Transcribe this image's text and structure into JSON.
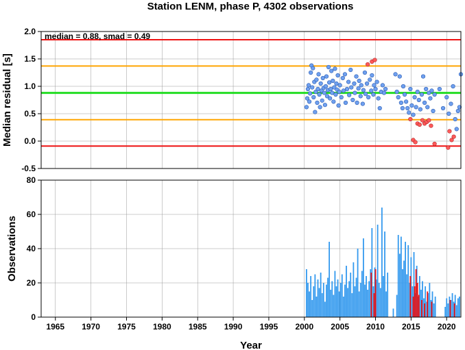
{
  "title": "Station LENM, phase P, 4302 observations",
  "xlabel": "Year",
  "colors": {
    "median_line": "#22dd22",
    "smad_lines": "#ffa500",
    "limit_lines": "#ee1111",
    "point_normal": "#6fa0ef",
    "point_outlier": "#ff5a5a",
    "bar_normal": "#3399ee",
    "bar_outlier": "#ee1111",
    "grid": "#999999"
  },
  "chart_data": [
    {
      "type": "scatter",
      "ylabel": "Median residual [s]",
      "annotation": "median = 0.88, smad = 0.49",
      "xlim": [
        1963,
        2022
      ],
      "ylim": [
        -0.5,
        2.0
      ],
      "x_ticks": [
        1965,
        1970,
        1975,
        1980,
        1985,
        1990,
        1995,
        2000,
        2005,
        2010,
        2015,
        2020
      ],
      "y_ticks": [
        "-0.5",
        "0.0",
        "0.5",
        "1.0",
        "1.5",
        "2.0"
      ],
      "y_tick_values": [
        -0.5,
        0.0,
        0.5,
        1.0,
        1.5,
        2.0
      ],
      "grid": true,
      "hlines": [
        {
          "y": 1.85,
          "kind": "limit"
        },
        {
          "y": 1.37,
          "kind": "smad"
        },
        {
          "y": 0.88,
          "kind": "median"
        },
        {
          "y": 0.39,
          "kind": "smad"
        },
        {
          "y": -0.09,
          "kind": "limit"
        }
      ],
      "points_normal": [
        [
          2000.3,
          0.62
        ],
        [
          2000.4,
          0.78
        ],
        [
          2000.5,
          0.95
        ],
        [
          2000.6,
          1.02
        ],
        [
          2000.7,
          0.72
        ],
        [
          2000.8,
          0.87
        ],
        [
          2000.9,
          1.25
        ],
        [
          2001.0,
          1.38
        ],
        [
          2001.1,
          0.98
        ],
        [
          2001.2,
          1.33
        ],
        [
          2001.3,
          0.8
        ],
        [
          2001.4,
          1.08
        ],
        [
          2001.5,
          0.53
        ],
        [
          2001.6,
          0.9
        ],
        [
          2001.7,
          1.12
        ],
        [
          2001.8,
          0.7
        ],
        [
          2001.9,
          0.95
        ],
        [
          2002.0,
          1.22
        ],
        [
          2002.1,
          0.85
        ],
        [
          2002.2,
          0.62
        ],
        [
          2002.3,
          1.05
        ],
        [
          2002.4,
          0.92
        ],
        [
          2002.5,
          0.74
        ],
        [
          2002.6,
          1.15
        ],
        [
          2002.7,
          0.97
        ],
        [
          2002.8,
          0.88
        ],
        [
          2002.9,
          0.66
        ],
        [
          2003.0,
          1.0
        ],
        [
          2003.1,
          1.18
        ],
        [
          2003.2,
          0.82
        ],
        [
          2003.3,
          0.93
        ],
        [
          2003.4,
          1.35
        ],
        [
          2003.5,
          1.07
        ],
        [
          2003.6,
          0.78
        ],
        [
          2003.7,
          0.95
        ],
        [
          2003.8,
          1.28
        ],
        [
          2003.9,
          0.88
        ],
        [
          2004.0,
          1.1
        ],
        [
          2004.1,
          0.72
        ],
        [
          2004.2,
          0.98
        ],
        [
          2004.3,
          1.32
        ],
        [
          2004.4,
          0.85
        ],
        [
          2004.5,
          1.05
        ],
        [
          2004.6,
          0.94
        ],
        [
          2004.7,
          1.2
        ],
        [
          2004.8,
          0.65
        ],
        [
          2004.9,
          0.9
        ],
        [
          2005.0,
          1.02
        ],
        [
          2005.2,
          0.8
        ],
        [
          2005.4,
          1.15
        ],
        [
          2005.5,
          0.92
        ],
        [
          2005.7,
          1.22
        ],
        [
          2005.8,
          0.7
        ],
        [
          2006.0,
          0.95
        ],
        [
          2006.2,
          1.08
        ],
        [
          2006.3,
          0.84
        ],
        [
          2006.5,
          1.3
        ],
        [
          2006.6,
          0.98
        ],
        [
          2006.8,
          0.75
        ],
        [
          2007.0,
          1.05
        ],
        [
          2007.1,
          0.88
        ],
        [
          2007.3,
          1.18
        ],
        [
          2007.4,
          0.7
        ],
        [
          2007.6,
          0.96
        ],
        [
          2007.7,
          1.1
        ],
        [
          2007.9,
          0.82
        ],
        [
          2008.0,
          1.02
        ],
        [
          2008.2,
          0.68
        ],
        [
          2008.3,
          0.93
        ],
        [
          2008.5,
          1.25
        ],
        [
          2008.6,
          0.86
        ],
        [
          2008.8,
          1.05
        ],
        [
          2009.0,
          0.8
        ],
        [
          2009.2,
          1.12
        ],
        [
          2009.4,
          0.92
        ],
        [
          2009.5,
          1.2
        ],
        [
          2009.7,
          0.85
        ],
        [
          2009.8,
          1.02
        ],
        [
          2010.0,
          0.95
        ],
        [
          2010.2,
          1.08
        ],
        [
          2010.4,
          0.78
        ],
        [
          2010.6,
          0.6
        ],
        [
          2010.8,
          0.9
        ],
        [
          2011.0,
          1.02
        ],
        [
          2011.2,
          0.88
        ],
        [
          2011.4,
          0.95
        ],
        [
          2012.8,
          1.22
        ],
        [
          2013.0,
          0.9
        ],
        [
          2013.2,
          0.8
        ],
        [
          2013.4,
          1.18
        ],
        [
          2013.6,
          0.7
        ],
        [
          2013.8,
          0.6
        ],
        [
          2013.9,
          1.0
        ],
        [
          2014.1,
          0.85
        ],
        [
          2014.3,
          0.72
        ],
        [
          2014.5,
          0.6
        ],
        [
          2014.7,
          0.52
        ],
        [
          2014.9,
          0.95
        ],
        [
          2015.1,
          0.65
        ],
        [
          2015.3,
          0.48
        ],
        [
          2015.5,
          0.8
        ],
        [
          2015.7,
          0.62
        ],
        [
          2015.9,
          0.9
        ],
        [
          2016.1,
          0.75
        ],
        [
          2016.3,
          0.58
        ],
        [
          2016.5,
          0.85
        ],
        [
          2016.7,
          1.18
        ],
        [
          2016.9,
          0.7
        ],
        [
          2017.1,
          0.95
        ],
        [
          2017.3,
          0.62
        ],
        [
          2017.5,
          0.88
        ],
        [
          2017.7,
          0.78
        ],
        [
          2017.9,
          0.92
        ],
        [
          2018.1,
          0.55
        ],
        [
          2018.3,
          0.85
        ],
        [
          2019.0,
          0.95
        ],
        [
          2019.5,
          0.6
        ],
        [
          2020.0,
          0.8
        ],
        [
          2020.3,
          0.5
        ],
        [
          2020.6,
          0.68
        ],
        [
          2020.9,
          1.0
        ],
        [
          2021.2,
          0.4
        ],
        [
          2021.4,
          0.22
        ],
        [
          2021.6,
          0.55
        ],
        [
          2021.8,
          0.62
        ],
        [
          2022.0,
          1.22
        ]
      ],
      "points_outlier": [
        [
          2008.9,
          1.4
        ],
        [
          2009.5,
          1.45
        ],
        [
          2009.9,
          1.48
        ],
        [
          2014.9,
          0.4
        ],
        [
          2015.3,
          0.02
        ],
        [
          2015.6,
          -0.02
        ],
        [
          2015.9,
          0.32
        ],
        [
          2016.2,
          0.3
        ],
        [
          2016.6,
          0.38
        ],
        [
          2016.9,
          0.32
        ],
        [
          2017.2,
          0.35
        ],
        [
          2017.5,
          0.38
        ],
        [
          2017.8,
          0.28
        ],
        [
          2018.3,
          -0.05
        ],
        [
          2020.2,
          -0.12
        ],
        [
          2020.4,
          0.18
        ],
        [
          2020.7,
          0.02
        ],
        [
          2021.0,
          0.08
        ]
      ]
    },
    {
      "type": "bar",
      "ylabel": "Observations",
      "xlim": [
        1963,
        2022
      ],
      "ylim": [
        0,
        80
      ],
      "x_ticks": [
        1965,
        1970,
        1975,
        1980,
        1985,
        1990,
        1995,
        2000,
        2005,
        2010,
        2015,
        2020
      ],
      "y_ticks": [
        "0",
        "20",
        "40",
        "60",
        "80"
      ],
      "y_tick_values": [
        0,
        20,
        40,
        60,
        80
      ],
      "grid": true,
      "bars_normal": [
        [
          2000.3,
          28
        ],
        [
          2000.5,
          20
        ],
        [
          2000.7,
          15
        ],
        [
          2000.9,
          24
        ],
        [
          2001.1,
          10
        ],
        [
          2001.3,
          18
        ],
        [
          2001.5,
          25
        ],
        [
          2001.7,
          12
        ],
        [
          2001.9,
          22
        ],
        [
          2002.1,
          17
        ],
        [
          2002.3,
          26
        ],
        [
          2002.5,
          14
        ],
        [
          2002.7,
          20
        ],
        [
          2002.9,
          9
        ],
        [
          2003.1,
          19
        ],
        [
          2003.3,
          23
        ],
        [
          2003.5,
          44
        ],
        [
          2003.7,
          16
        ],
        [
          2003.9,
          21
        ],
        [
          2004.1,
          13
        ],
        [
          2004.3,
          27
        ],
        [
          2004.5,
          18
        ],
        [
          2004.7,
          22
        ],
        [
          2004.9,
          15
        ],
        [
          2005.1,
          20
        ],
        [
          2005.3,
          25
        ],
        [
          2005.5,
          12
        ],
        [
          2005.7,
          19
        ],
        [
          2005.9,
          30
        ],
        [
          2006.1,
          17
        ],
        [
          2006.3,
          21
        ],
        [
          2006.5,
          26
        ],
        [
          2006.7,
          14
        ],
        [
          2006.9,
          32
        ],
        [
          2007.1,
          18
        ],
        [
          2007.3,
          23
        ],
        [
          2007.5,
          40
        ],
        [
          2007.7,
          15
        ],
        [
          2007.9,
          20
        ],
        [
          2008.1,
          27
        ],
        [
          2008.3,
          46
        ],
        [
          2008.5,
          19
        ],
        [
          2008.7,
          24
        ],
        [
          2008.9,
          16
        ],
        [
          2009.1,
          21
        ],
        [
          2009.3,
          28
        ],
        [
          2009.5,
          52
        ],
        [
          2009.7,
          18
        ],
        [
          2009.9,
          29
        ],
        [
          2010.1,
          22
        ],
        [
          2010.3,
          54
        ],
        [
          2010.5,
          20
        ],
        [
          2010.7,
          17
        ],
        [
          2010.9,
          64
        ],
        [
          2011.1,
          24
        ],
        [
          2011.3,
          50
        ],
        [
          2011.5,
          15
        ],
        [
          2011.7,
          26
        ],
        [
          2012.5,
          5
        ],
        [
          2013.0,
          13
        ],
        [
          2013.2,
          48
        ],
        [
          2013.4,
          37
        ],
        [
          2013.6,
          47
        ],
        [
          2013.8,
          28
        ],
        [
          2014.0,
          33
        ],
        [
          2014.2,
          44
        ],
        [
          2014.4,
          25
        ],
        [
          2014.6,
          42
        ],
        [
          2014.8,
          20
        ],
        [
          2015.0,
          35
        ],
        [
          2015.2,
          18
        ],
        [
          2015.4,
          38
        ],
        [
          2015.6,
          14
        ],
        [
          2015.8,
          30
        ],
        [
          2016.0,
          12
        ],
        [
          2016.2,
          24
        ],
        [
          2016.4,
          16
        ],
        [
          2016.6,
          21
        ],
        [
          2016.8,
          11
        ],
        [
          2017.0,
          18
        ],
        [
          2017.2,
          9
        ],
        [
          2017.4,
          14
        ],
        [
          2017.6,
          20
        ],
        [
          2017.8,
          10
        ],
        [
          2018.0,
          15
        ],
        [
          2018.2,
          8
        ],
        [
          2018.4,
          12
        ],
        [
          2019.8,
          6
        ],
        [
          2020.0,
          11
        ],
        [
          2020.2,
          8
        ],
        [
          2020.4,
          12
        ],
        [
          2020.6,
          10
        ],
        [
          2020.8,
          14
        ],
        [
          2021.0,
          9
        ],
        [
          2021.2,
          13
        ],
        [
          2021.4,
          7
        ],
        [
          2021.6,
          11
        ],
        [
          2021.8,
          12
        ]
      ],
      "bars_outlier": [
        [
          2009.4,
          26
        ],
        [
          2009.8,
          14
        ],
        [
          2010.0,
          28
        ],
        [
          2014.9,
          24
        ],
        [
          2015.3,
          12
        ],
        [
          2015.5,
          18
        ],
        [
          2015.7,
          28
        ],
        [
          2015.9,
          20
        ],
        [
          2016.1,
          13
        ],
        [
          2016.5,
          10
        ],
        [
          2016.9,
          8
        ],
        [
          2017.3,
          15
        ],
        [
          2017.9,
          9
        ],
        [
          2020.5,
          10
        ],
        [
          2021.1,
          8
        ]
      ]
    }
  ]
}
